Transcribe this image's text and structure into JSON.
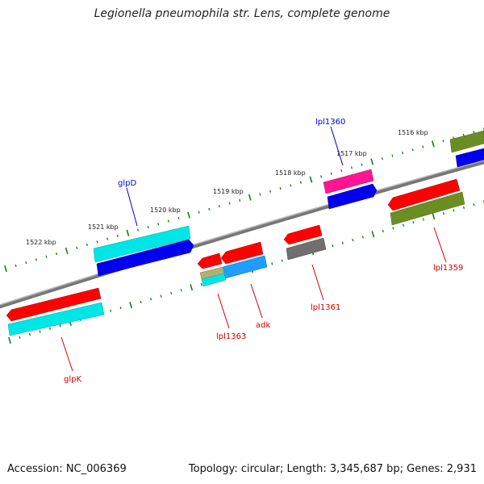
{
  "title": "Legionella pneumophila str. Lens, complete genome",
  "footer": {
    "accession": "Accession: NC_006369",
    "summary": "Topology: circular; Length: 3,345,687 bp; Genes: 2,931"
  },
  "ruler_labels": [
    "1522 kbp",
    "1521 kbp",
    "1520 kbp",
    "1519 kbp",
    "1518 kbp",
    "1517 kbp",
    "1516 kbp"
  ],
  "gene_labels": {
    "lpl1360": "lpl1360",
    "glpD": "glpD",
    "lpl1359": "lpl1359",
    "lpl1361": "lpl1361",
    "adk": "adk",
    "lpl1363": "lpl1363",
    "glpK": "glpK"
  },
  "colors": {
    "backbone": "#888888",
    "tick": "#1a7a1a",
    "label_forward": "#0000cc",
    "label_reverse": "#cc0000",
    "red": "#ff0000",
    "cyan": "#00e5e5",
    "blue": "#0000ee",
    "magenta": "#ff1493",
    "olive": "#6b8e23",
    "gray": "#707070",
    "skyblue": "#1e9fff",
    "khaki": "#b5b070"
  }
}
